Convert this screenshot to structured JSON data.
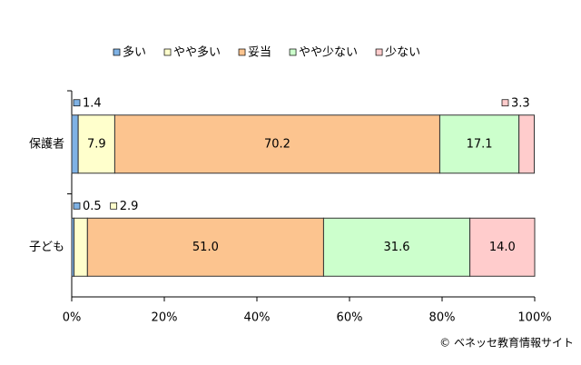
{
  "chart_data": {
    "type": "stacked-bar-horizontal",
    "categories": [
      "保護者",
      "子ども"
    ],
    "series": [
      {
        "name": "多い",
        "color": "#7fb2e5",
        "values": [
          1.4,
          0.5
        ],
        "value_labels": [
          "1.4",
          "0.5"
        ]
      },
      {
        "name": "やや多い",
        "color": "#ffffcc",
        "values": [
          7.9,
          2.9
        ],
        "value_labels": [
          "7.9",
          "2.9"
        ]
      },
      {
        "name": "妥当",
        "color": "#fcc48f",
        "values": [
          70.2,
          51.0
        ],
        "value_labels": [
          "70.2",
          "51.0"
        ]
      },
      {
        "name": "やや少ない",
        "color": "#ccffcc",
        "values": [
          17.1,
          31.6
        ],
        "value_labels": [
          "17.1",
          "31.6"
        ]
      },
      {
        "name": "少ない",
        "color": "#ffcccc",
        "values": [
          3.3,
          14.0
        ],
        "value_labels": [
          "3.3",
          "14.0"
        ]
      }
    ],
    "xlim": [
      0,
      100
    ],
    "xticks": [
      {
        "value": 0,
        "label": "0%"
      },
      {
        "value": 20,
        "label": "20%"
      },
      {
        "value": 40,
        "label": "40%"
      },
      {
        "value": 60,
        "label": "60%"
      },
      {
        "value": 80,
        "label": "80%"
      },
      {
        "value": 100,
        "label": "100%"
      }
    ],
    "legend": "top",
    "credit": "© ベネッセ教育情報サイト"
  }
}
